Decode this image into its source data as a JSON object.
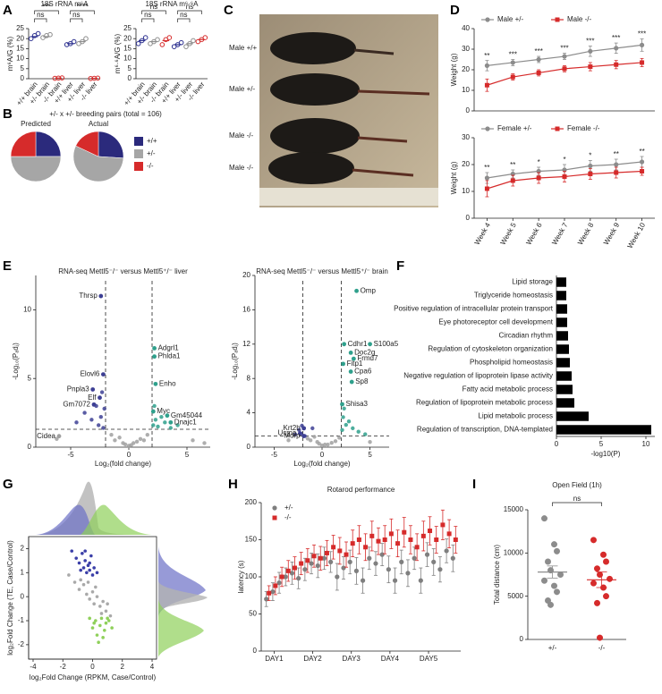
{
  "panel_labels": [
    "A",
    "B",
    "C",
    "D",
    "E",
    "F",
    "G",
    "H",
    "I"
  ],
  "photo": {
    "labels": [
      "Male +/+",
      "Male +/-",
      "Male -/-",
      "Male -/-"
    ]
  },
  "chart_data": [
    {
      "type": "dot",
      "title": "18S rRNA m⁶A",
      "y_label": "m⁶A/G (%)",
      "marker_fill": "open",
      "categories": [
        "+/+ brain",
        "+/- brain",
        "-/- brain",
        "+/+ liver",
        "+/- liver",
        "-/- liver"
      ],
      "colors": [
        "#2b2f8f",
        "#8c8c8c",
        "#d62b2b",
        "#2b2f8f",
        "#8c8c8c",
        "#d62b2b"
      ],
      "values": [
        21,
        21,
        0.3,
        17.5,
        18.5,
        0.2
      ],
      "points": [
        [
          20,
          21.5,
          22.5
        ],
        [
          20.5,
          21.5,
          22
        ],
        [
          0.2,
          0.3,
          0.4
        ],
        [
          17,
          17.5,
          18.5
        ],
        [
          17.5,
          18.5,
          20
        ],
        [
          0.1,
          0.2,
          0.3
        ]
      ],
      "ylim": [
        0,
        25
      ],
      "yticks": [
        0,
        5,
        10,
        15,
        20,
        25
      ],
      "annotations": [
        "***",
        "ns",
        "****",
        "ns"
      ]
    },
    {
      "type": "dot",
      "title": "18S rRNA m⁶·⁶A",
      "y_label": "m⁶·⁶A/G (%)",
      "marker_fill": "open",
      "categories": [
        "+/+ brain",
        "+/- brain",
        "-/- brain",
        "+/+ liver",
        "+/- liver",
        "-/- liver"
      ],
      "colors": [
        "#2b2f8f",
        "#8c8c8c",
        "#d62b2b",
        "#2b2f8f",
        "#8c8c8c",
        "#d62b2b"
      ],
      "values": [
        19,
        18.5,
        19,
        17,
        17.5,
        19.5
      ],
      "points": [
        [
          17.5,
          19,
          20.5
        ],
        [
          17.5,
          18.5,
          19.5
        ],
        [
          17,
          19.5,
          20.5
        ],
        [
          16,
          17,
          18
        ],
        [
          16,
          17.5,
          19
        ],
        [
          18.5,
          19.5,
          20.5
        ]
      ],
      "ylim": [
        0,
        25
      ],
      "yticks": [
        0,
        5,
        10,
        15,
        20,
        25
      ],
      "annotations": [
        "ns",
        "ns",
        "ns",
        "ns"
      ]
    },
    {
      "type": "pie",
      "title": "+/- x +/- breeding pairs (total = 106)",
      "categories": [
        "+/+",
        "+/-",
        "-/-"
      ],
      "colors": [
        "#2b2a7c",
        "#a6a6a6",
        "#d62b2b"
      ],
      "pies": [
        {
          "name": "Predicted",
          "values": [
            25,
            50,
            25
          ]
        },
        {
          "name": "Actual",
          "values": [
            26,
            56,
            18
          ]
        }
      ]
    },
    {
      "type": "line",
      "y_label": "Weight (g)",
      "ylim": [
        0,
        40
      ],
      "yticks": [
        0,
        10,
        20,
        30,
        40
      ],
      "series": [
        {
          "name": "Male +/-",
          "color": "#8c8c8c",
          "marker": "circle",
          "values": [
            22,
            23.5,
            25,
            26.5,
            29,
            30.5,
            32
          ],
          "errors": [
            2.5,
            1.5,
            1.5,
            1.5,
            2.5,
            2.5,
            3
          ]
        },
        {
          "name": "Male -/-",
          "color": "#d62b2b",
          "marker": "square",
          "values": [
            12.5,
            16.5,
            18.5,
            20.5,
            21.5,
            22.5,
            23.5
          ],
          "errors": [
            3,
            1.5,
            1.5,
            1.5,
            2,
            2,
            2
          ]
        }
      ],
      "annotations": [
        "**",
        "***",
        "***",
        "***",
        "***",
        "***",
        "***"
      ]
    },
    {
      "type": "line",
      "y_label": "Weight (g)",
      "ylim": [
        0,
        30
      ],
      "yticks": [
        0,
        10,
        20,
        30
      ],
      "categories": [
        "Week 4",
        "Week 5",
        "Week 6",
        "Week 7",
        "Week 8",
        "Week 9",
        "Week 10"
      ],
      "series": [
        {
          "name": "Female +/-",
          "color": "#8c8c8c",
          "marker": "circle",
          "values": [
            15,
            16.5,
            17.5,
            18,
            19.5,
            20,
            21
          ],
          "errors": [
            2,
            1.5,
            1.5,
            2,
            2,
            2,
            2
          ]
        },
        {
          "name": "Female -/-",
          "color": "#d62b2b",
          "marker": "square",
          "values": [
            11,
            14,
            15,
            15.5,
            16.5,
            17,
            17.5
          ],
          "errors": [
            3,
            2,
            2,
            2,
            2,
            2,
            1.5
          ]
        }
      ],
      "annotations": [
        "**",
        "**",
        "*",
        "*",
        "*",
        "**",
        "**"
      ]
    },
    {
      "type": "volcano",
      "title": "RNA-seq Mettl5⁻/⁻ versus Mettl5⁺/⁻ liver",
      "x_label": "Log₂(fold change)",
      "y_label": "-Log₁₀(Pₐdⱼ)",
      "xlim": [
        -8,
        7
      ],
      "xticks": [
        -5,
        0,
        5
      ],
      "ylim": [
        0,
        12.5
      ],
      "yticks": [
        0,
        5,
        10
      ],
      "thresholds_x": [
        -2,
        2
      ],
      "threshold_y": 1.3,
      "colors": {
        "down": "#3d3f94",
        "up": "#2fa08c",
        "ns": "#a0a0a0"
      },
      "points": {
        "x": [
          -6.2,
          -4.5,
          -3.8,
          -3.2,
          -2.8,
          -2.6,
          -2.4,
          -2.3,
          -2.2,
          -2.1,
          -1.5,
          -1.2,
          -0.8,
          -0.5,
          -0.3,
          0,
          0.2,
          0.4,
          0.7,
          1,
          1.3,
          1.6,
          2.1,
          2.2,
          2.3,
          2.5,
          2.8,
          3.1,
          3.6,
          4.2,
          5.5,
          6.5
        ],
        "y": [
          0.6,
          1.8,
          2.5,
          2.0,
          3.0,
          1.6,
          2.2,
          4.0,
          1.4,
          2.8,
          0.9,
          0.5,
          0.7,
          0.3,
          0.2,
          0.1,
          0.15,
          0.3,
          0.4,
          0.6,
          0.5,
          0.9,
          1.6,
          3.0,
          2.0,
          1.5,
          2.2,
          1.8,
          1.4,
          1.6,
          0.5,
          0.3
        ]
      },
      "genes": [
        {
          "name": "Thrsp",
          "x": -2.4,
          "y": 11.0
        },
        {
          "name": "Adgrl1",
          "x": 2.2,
          "y": 7.2
        },
        {
          "name": "Phlda1",
          "x": 2.2,
          "y": 6.6
        },
        {
          "name": "Enho",
          "x": 2.3,
          "y": 4.6
        },
        {
          "name": "Elovl6",
          "x": -2.2,
          "y": 5.3
        },
        {
          "name": "Pnpla3",
          "x": -3.1,
          "y": 4.2
        },
        {
          "name": "Elf",
          "x": -2.5,
          "y": 3.6
        },
        {
          "name": "Gm7072",
          "x": -3.0,
          "y": 3.1
        },
        {
          "name": "Myc",
          "x": 2.1,
          "y": 2.6
        },
        {
          "name": "Gm45044",
          "x": 3.3,
          "y": 2.3
        },
        {
          "name": "Dnajc1",
          "x": 3.6,
          "y": 1.8
        },
        {
          "name": "Cidea",
          "x": -6.0,
          "y": 0.8
        }
      ]
    },
    {
      "type": "volcano",
      "title": "RNA-seq Mettl5⁻/⁻ versus Mettl5⁺/⁻ brain",
      "x_label": "Log₂(fold change)",
      "y_label": "-Log₁₀(Pₐdⱼ)",
      "xlim": [
        -7,
        7
      ],
      "xticks": [
        -5,
        0,
        5
      ],
      "ylim": [
        0,
        20
      ],
      "yticks": [
        0,
        4,
        8,
        12,
        16,
        20
      ],
      "thresholds_x": [
        -2,
        2
      ],
      "threshold_y": 1.3,
      "colors": {
        "down": "#3d3f94",
        "up": "#2fa08c",
        "ns": "#a0a0a0"
      },
      "points": {
        "x": [
          -3.5,
          -2.8,
          -2.4,
          -2.2,
          -2.1,
          -1.8,
          -1.5,
          -1.2,
          -1,
          -0.8,
          -0.5,
          -0.3,
          0,
          0.3,
          0.6,
          1,
          1.4,
          1.8,
          2.1,
          2.2,
          2.3,
          2.5,
          2.8,
          3.2,
          3.8,
          4.5,
          5
        ],
        "y": [
          0.8,
          1.5,
          2.0,
          1.6,
          2.5,
          1.3,
          1.0,
          0.8,
          2.2,
          1.2,
          0.6,
          0.4,
          0.2,
          0.3,
          0.3,
          0.5,
          0.7,
          1.1,
          2.0,
          3.5,
          4.5,
          2.6,
          3.0,
          2.2,
          1.8,
          1.5,
          0.6
        ]
      },
      "genes": [
        {
          "name": "Omp",
          "x": 3.6,
          "y": 18.2
        },
        {
          "name": "Cdhr1",
          "x": 2.3,
          "y": 12.0
        },
        {
          "name": "S100a5",
          "x": 5.0,
          "y": 12.0
        },
        {
          "name": "Doc2g",
          "x": 3.0,
          "y": 11.0
        },
        {
          "name": "Frmd7",
          "x": 3.3,
          "y": 10.3
        },
        {
          "name": "Fitp1",
          "x": 2.2,
          "y": 9.7
        },
        {
          "name": "Cpa6",
          "x": 3.0,
          "y": 8.8
        },
        {
          "name": "Sp8",
          "x": 3.1,
          "y": 7.6
        },
        {
          "name": "Shisa3",
          "x": 2.1,
          "y": 5.0
        },
        {
          "name": "Krt2b",
          "x": -1.9,
          "y": 2.2
        },
        {
          "name": "Ucma",
          "x": -2.3,
          "y": 1.6
        },
        {
          "name": "Mdrp",
          "x": -1.9,
          "y": 1.3
        }
      ]
    },
    {
      "type": "hbar",
      "x_label": "-log10(P)",
      "color": "#000000",
      "categories": [
        "Lipid storage",
        "Triglyceride homeostasis",
        "Positive regulation of intracellular protein transport",
        "Eye photoreceptor cell development",
        "Circadian rhythm",
        "Regulation of cytoskeleton organization",
        "Phospholipid homeostasis",
        "Negative regulation of lipoprotein lipase activity",
        "Fatty acid metabolic process",
        "Regulation of lipoprotein metabolic process",
        "Lipid metabolic process",
        "Regulation of transcription, DNA-templated"
      ],
      "values": [
        1.1,
        1.1,
        1.2,
        1.2,
        1.3,
        1.4,
        1.5,
        1.7,
        1.8,
        2.0,
        3.6,
        10.6
      ],
      "xlim": [
        0,
        11
      ],
      "xticks": [
        0,
        5,
        10
      ]
    },
    {
      "type": "scatter",
      "x_label": "log₂Fold Change (RPKM, Case/Control)",
      "y_label": "log₂Fold Change (TE, Case/Control)",
      "xlim": [
        -4.3,
        4.3
      ],
      "xticks": [
        -4,
        -2,
        0,
        2,
        4
      ],
      "ylim": [
        -2.6,
        2.5
      ],
      "yticks": [
        -2,
        -1,
        0,
        1,
        2
      ],
      "point_sets": [
        {
          "color": "#a9a9a9",
          "x": [
            -1.6,
            -1.2,
            -0.9,
            -0.6,
            -0.4,
            -0.2,
            0,
            0.1,
            0.3,
            0.5,
            0.7,
            0.9,
            1.2,
            -0.3,
            0.2,
            0.6,
            -0.8,
            1.0
          ],
          "y": [
            0.9,
            0.6,
            0.3,
            0.5,
            0.1,
            -0.1,
            0.2,
            -0.3,
            0,
            -0.4,
            -0.2,
            -0.6,
            -0.8,
            0.6,
            0.4,
            -0.7,
            0.7,
            -0.3
          ]
        },
        {
          "color": "#3b3fa8",
          "x": [
            -1.4,
            -1.1,
            -0.9,
            -0.7,
            -0.6,
            -0.5,
            -0.4,
            -0.3,
            -0.2,
            -0.1,
            0,
            0.1,
            0.3,
            -0.8,
            -0.5,
            -0.2
          ],
          "y": [
            1.9,
            1.6,
            1.4,
            1.8,
            1.2,
            1.5,
            1.0,
            1.3,
            1.1,
            1.7,
            0.9,
            1.2,
            1.0,
            1.1,
            1.9,
            1.4
          ]
        },
        {
          "color": "#8fd05a",
          "x": [
            -0.2,
            0,
            0.2,
            0.3,
            0.5,
            0.6,
            0.8,
            0.9,
            1.1,
            1.3,
            0.4,
            0.7,
            1.0,
            0.1
          ],
          "y": [
            -0.9,
            -1.3,
            -1.0,
            -1.6,
            -1.2,
            -0.9,
            -1.4,
            -1.1,
            -1.0,
            -1.3,
            -1.9,
            -1.7,
            -0.9,
            -1.1
          ]
        }
      ]
    },
    {
      "type": "line",
      "connect": false,
      "title": "Rotarod performance",
      "y_label": "latency (s)",
      "x": [
        1,
        2,
        3,
        4,
        5,
        6,
        7,
        8,
        9,
        10,
        11,
        12,
        13,
        14,
        15,
        16,
        17,
        18,
        19,
        20,
        21,
        22,
        23,
        24,
        25,
        26,
        27,
        28,
        29,
        30
      ],
      "xlim": [
        0,
        31
      ],
      "xticks": [
        {
          "value": 2,
          "label": "DAY1"
        },
        {
          "value": 8,
          "label": "DAY2"
        },
        {
          "value": 14,
          "label": "DAY3"
        },
        {
          "value": 20,
          "label": "DAY4"
        },
        {
          "value": 26,
          "label": "DAY5"
        }
      ],
      "ylim": [
        0,
        200
      ],
      "yticks": [
        0,
        50,
        100,
        150,
        200
      ],
      "series": [
        {
          "name": "+/-",
          "color": "#7f7f7f",
          "marker": "circle",
          "values": [
            70,
            80,
            92,
            100,
            105,
            98,
            110,
            118,
            115,
            125,
            120,
            100,
            112,
            120,
            108,
            95,
            125,
            118,
            130,
            110,
            95,
            120,
            105,
            125,
            95,
            130,
            120,
            110,
            135,
            125
          ],
          "errors": [
            10,
            12,
            14,
            12,
            15,
            14,
            15,
            14,
            16,
            15,
            14,
            18,
            15,
            16,
            18,
            17,
            15,
            16,
            15,
            18,
            17,
            16,
            18,
            15,
            17,
            16,
            18,
            17,
            16,
            18
          ]
        },
        {
          "name": "-/-",
          "color": "#d62b2b",
          "marker": "square",
          "values": [
            78,
            88,
            100,
            108,
            112,
            118,
            122,
            128,
            125,
            132,
            140,
            135,
            130,
            145,
            150,
            140,
            155,
            148,
            150,
            158,
            145,
            160,
            150,
            140,
            155,
            162,
            150,
            170,
            158,
            150
          ],
          "errors": [
            10,
            12,
            13,
            14,
            15,
            15,
            16,
            15,
            16,
            17,
            16,
            18,
            17,
            18,
            19,
            18,
            20,
            18,
            19,
            20,
            18,
            20,
            19,
            18,
            20,
            19,
            18,
            20,
            19,
            18
          ]
        }
      ]
    },
    {
      "type": "dot",
      "title": "Open Field (1h)",
      "y_label": "Total distance (cm)",
      "marker_fill": "solid",
      "categories": [
        "+/-",
        "-/-"
      ],
      "colors": [
        "#8c8c8c",
        "#d62b2b"
      ],
      "values": [
        7800,
        6900
      ],
      "errors": [
        700,
        900
      ],
      "points": [
        [
          14000,
          11000,
          10200,
          9000,
          8000,
          7500,
          6800,
          6200,
          5500,
          4500,
          4000
        ],
        [
          11500,
          9800,
          9000,
          8200,
          7500,
          7000,
          6500,
          6000,
          5000,
          4200,
          200
        ]
      ],
      "ylim": [
        0,
        15000
      ],
      "yticks": [
        0,
        5000,
        10000,
        15000
      ],
      "annotations": [
        "ns"
      ]
    }
  ]
}
